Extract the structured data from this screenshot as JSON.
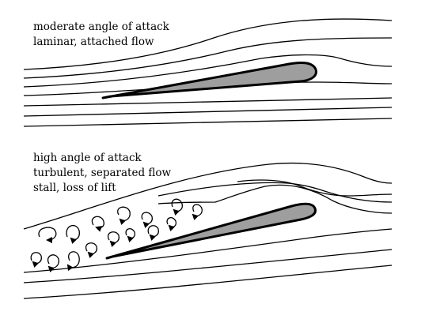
{
  "top_panel": {
    "lines": [
      "moderate angle of attack",
      "laminar, attached flow"
    ]
  },
  "bottom_panel": {
    "lines": [
      "high angle of attack",
      "turbulent, separated flow",
      "stall, loss of lift"
    ]
  },
  "colors": {
    "airfoil_fill": "#9e9e9e",
    "stroke": "#000000",
    "background": "#ffffff"
  }
}
